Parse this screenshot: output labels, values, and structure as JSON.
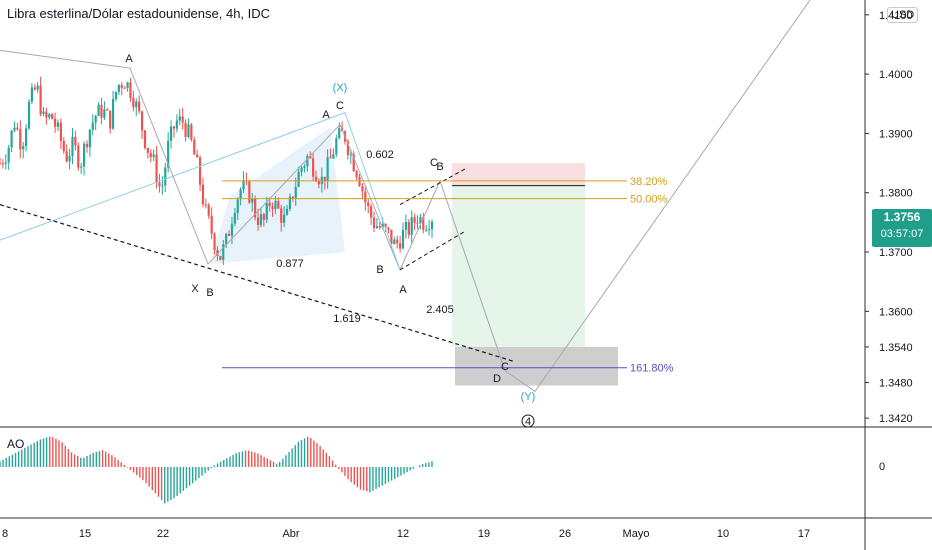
{
  "title": "Libra esterlina/Dólar estadounidense, 4h, IDC",
  "currency_button": "USD",
  "last_price": "1.3756",
  "countdown": "03:57:07",
  "indicator_label": "AO",
  "colors": {
    "up": "#26a69a",
    "down": "#ef5350",
    "ao_up": "#26a69a",
    "ao_down": "#ef5350",
    "fib_38": "#d4a017",
    "fib_50": "#d4a017",
    "fib_161": "#5b4fc4",
    "price_tag": "#1f9e89"
  },
  "chart_data": {
    "type": "candlestick",
    "title": "Libra esterlina/Dólar estadounidense, 4h, IDC",
    "ylim": [
      1.3405,
      1.4125
    ],
    "y_ticks": [
      "1.4100",
      "1.4000",
      "1.3900",
      "1.3800",
      "1.3700",
      "1.3600",
      "1.3540",
      "1.3480",
      "1.3420"
    ],
    "x_ticks": [
      "8",
      "15",
      "22",
      "Abr",
      "12",
      "19",
      "26",
      "Mayo",
      "10",
      "17"
    ],
    "close_path": [
      1.385,
      1.387,
      1.392,
      1.388,
      1.395,
      1.398,
      1.392,
      1.393,
      1.39,
      1.386,
      1.388,
      1.385,
      1.39,
      1.393,
      1.394,
      1.392,
      1.398,
      1.399,
      1.397,
      1.393,
      1.388,
      1.385,
      1.38,
      1.388,
      1.392,
      1.392,
      1.389,
      1.384,
      1.377,
      1.373,
      1.369,
      1.372,
      1.378,
      1.381,
      1.38,
      1.376,
      1.375,
      1.379,
      1.377,
      1.375,
      1.38,
      1.384,
      1.386,
      1.384,
      1.382,
      1.385,
      1.389,
      1.39,
      1.386,
      1.383,
      1.378,
      1.375,
      1.374,
      1.373,
      1.371,
      1.373,
      1.374,
      1.376,
      1.375,
      1.376
    ],
    "ao_values": [
      0.2,
      0.4,
      0.6,
      0.8,
      1.0,
      1.1,
      0.9,
      0.5,
      0.3,
      0.5,
      0.6,
      0.4,
      0.1,
      -0.2,
      -0.5,
      -0.9,
      -1.3,
      -1.1,
      -0.8,
      -0.5,
      -0.2,
      0.1,
      0.3,
      0.5,
      0.6,
      0.5,
      0.3,
      0.1,
      0.5,
      0.9,
      1.1,
      0.8,
      0.4,
      -0.1,
      -0.5,
      -0.8,
      -0.9,
      -0.7,
      -0.5,
      -0.3,
      -0.1,
      0.1,
      0.2
    ],
    "fib_levels": [
      {
        "label": "38.20%",
        "price": 1.382
      },
      {
        "label": "50.00%",
        "price": 1.379
      },
      {
        "label": "161.80%",
        "price": 1.3505
      }
    ],
    "annotations": [
      "A",
      "(X)",
      "A",
      "C",
      "0.602",
      "C",
      "B",
      "0.877",
      "X",
      "B",
      "B",
      "A",
      "1.619",
      "2.405",
      "C",
      "D",
      "(Y)",
      "4"
    ],
    "ao_zero_label": "0"
  }
}
